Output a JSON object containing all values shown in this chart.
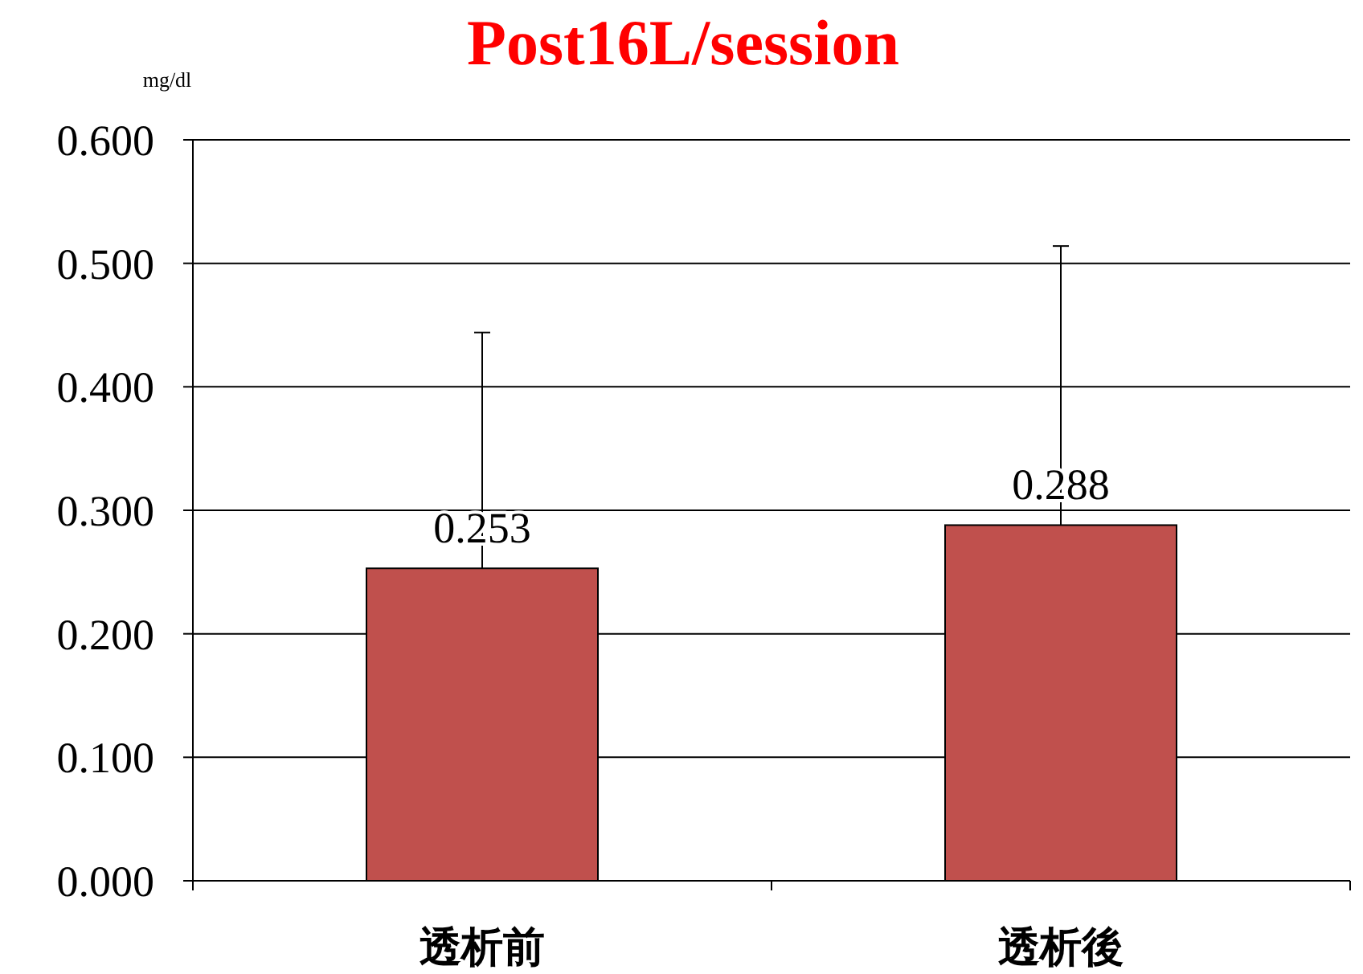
{
  "chart_data": {
    "type": "bar",
    "title": "Post16L/session",
    "ylabel": "mg/dl",
    "categories": [
      "透析前",
      "透析後"
    ],
    "values": [
      0.253,
      0.288
    ],
    "errors": [
      [
        0.253,
        0.444
      ],
      [
        0.288,
        0.514
      ]
    ],
    "color": "#c0504d",
    "ylim": [
      0,
      0.6
    ],
    "yticks": [
      {
        "value": 0,
        "label": "0.000"
      },
      {
        "value": 0.1,
        "label": "0.100"
      },
      {
        "value": 0.2,
        "label": "0.200"
      },
      {
        "value": 0.3,
        "label": "0.300"
      },
      {
        "value": 0.4,
        "label": "0.400"
      },
      {
        "value": 0.5,
        "label": "0.500"
      },
      {
        "value": 0.6,
        "label": "0.600"
      }
    ],
    "grid": "y",
    "data_labels": true
  }
}
